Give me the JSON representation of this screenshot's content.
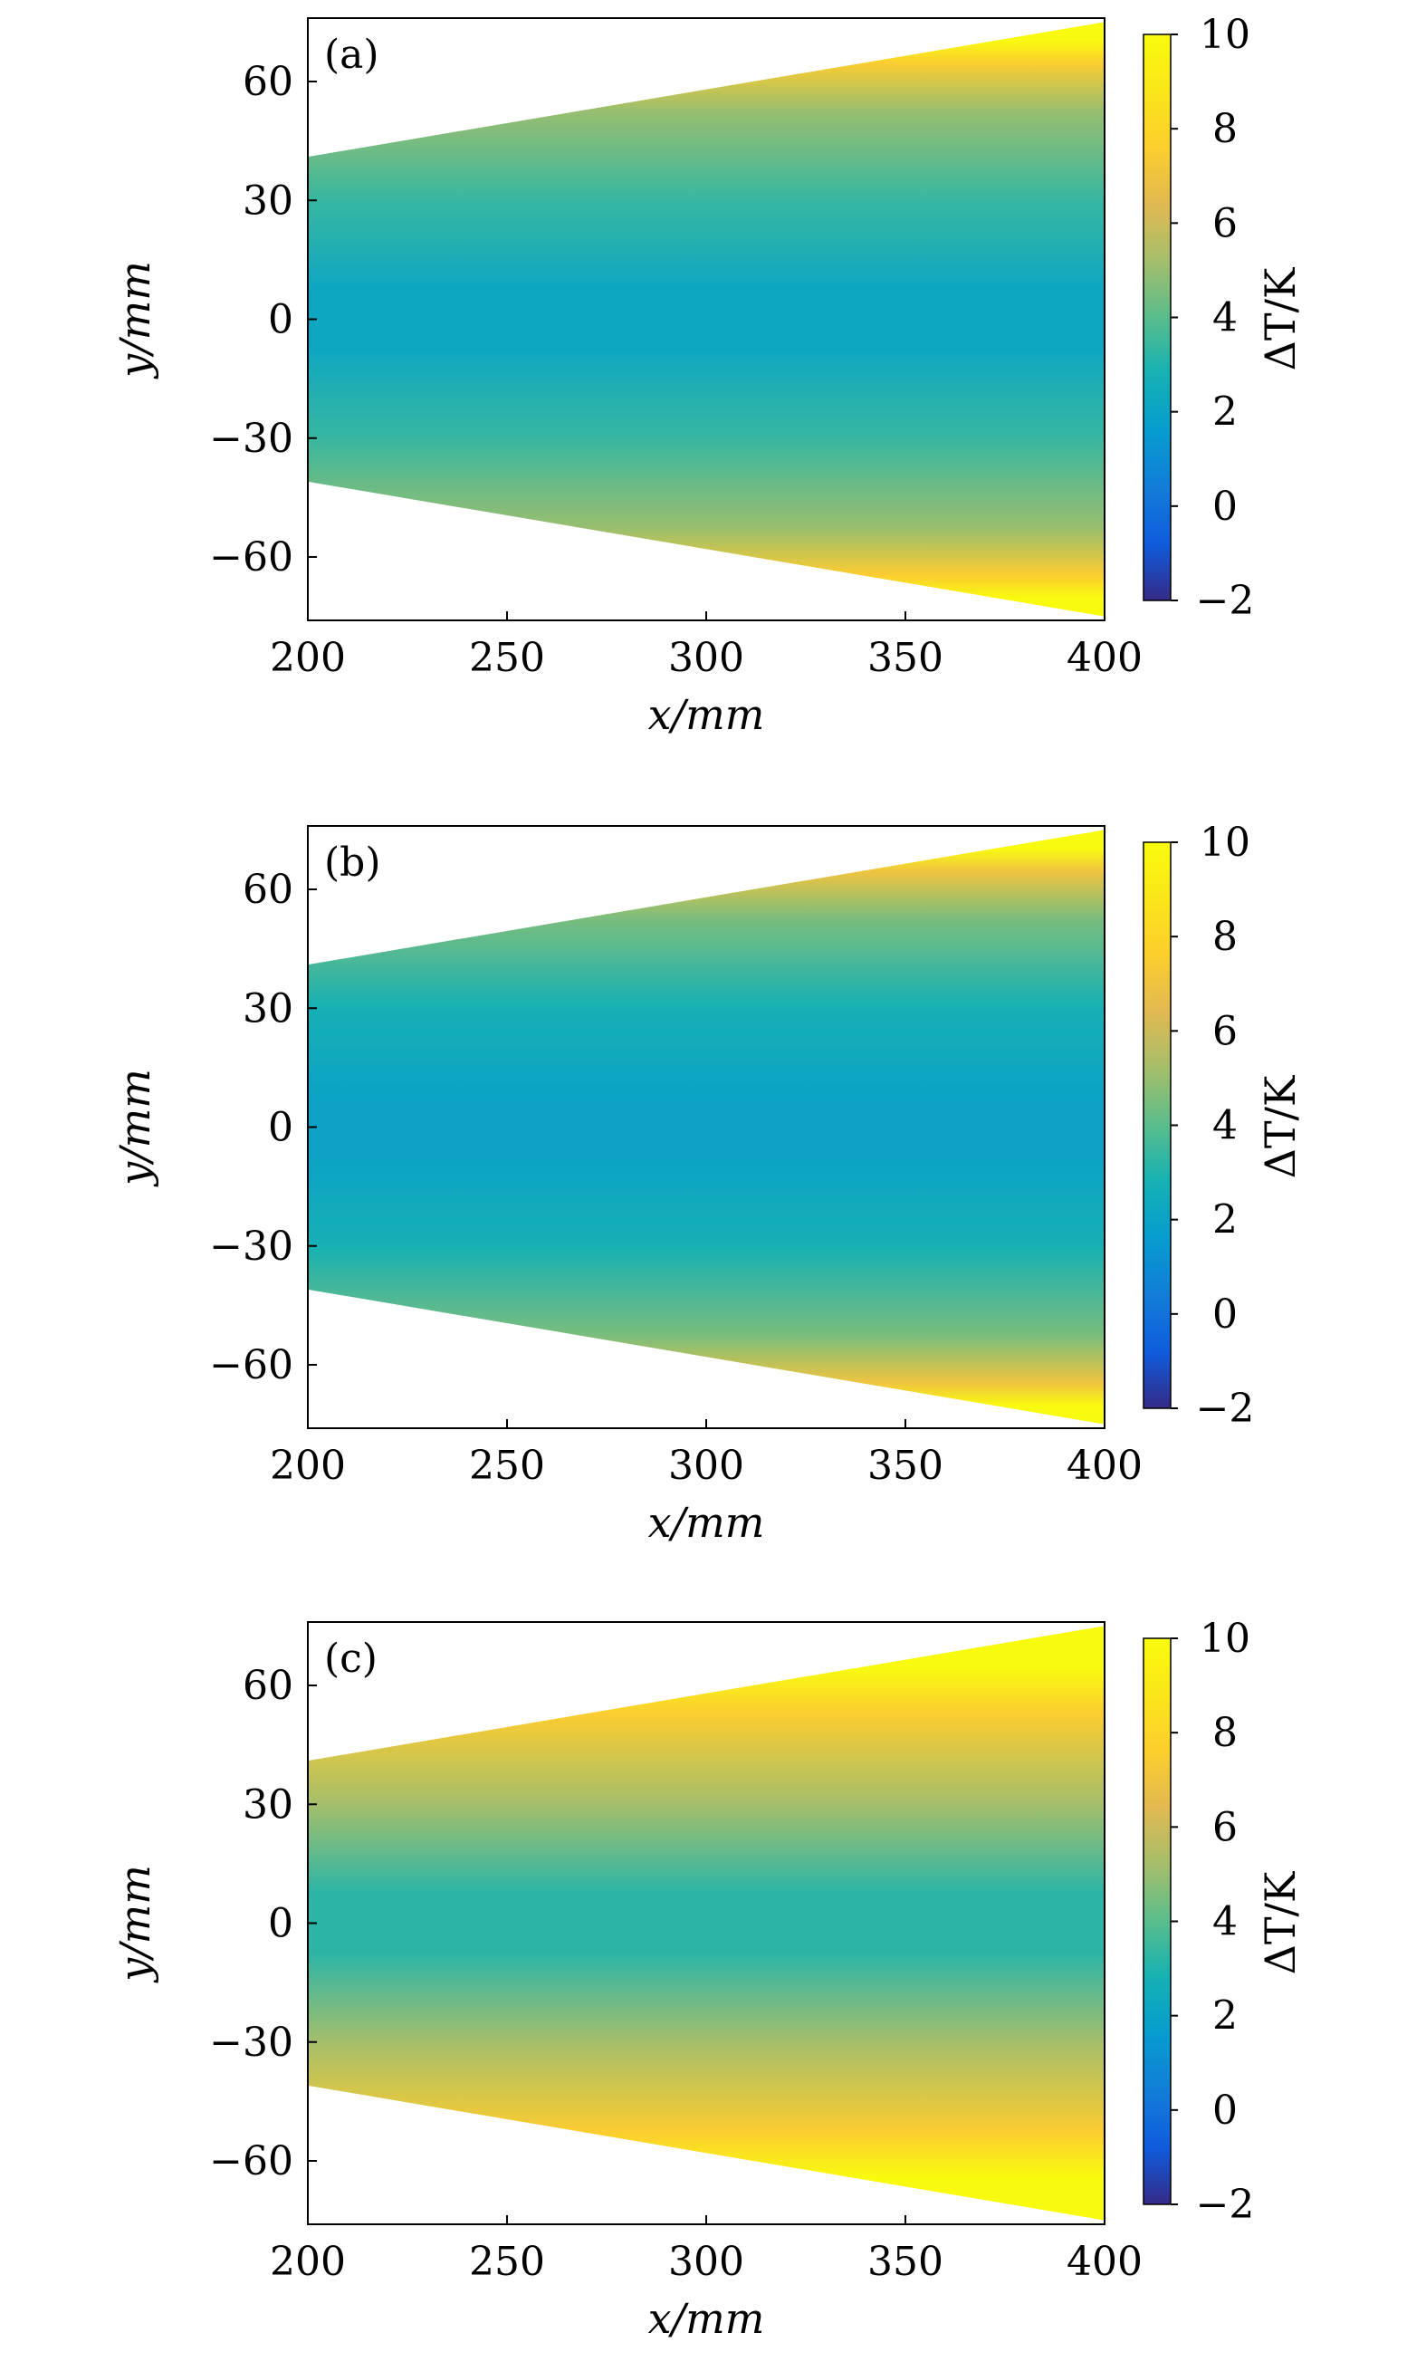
{
  "chart_data": [
    {
      "type": "heatmap",
      "panel_label": "(a)",
      "xlabel": "x/mm",
      "ylabel": "y/mm",
      "xlim": [
        200,
        400
      ],
      "ylim": [
        -76,
        76
      ],
      "xticks": [
        200,
        250,
        300,
        350,
        400
      ],
      "yticks": [
        -60,
        -30,
        0,
        30,
        60
      ],
      "domain_half_width": {
        "x": [
          200,
          400
        ],
        "half_width": [
          41,
          75
        ]
      },
      "field": {
        "center_value": 2.2,
        "edge_value": 10,
        "near_edge_value": 5.0,
        "mid_value": 3.4
      },
      "colorbar": {
        "label": "ΔT/K",
        "min": -2,
        "max": 10,
        "ticks": [
          -2,
          0,
          2,
          4,
          6,
          8,
          10
        ]
      }
    },
    {
      "type": "heatmap",
      "panel_label": "(b)",
      "xlabel": "x/mm",
      "ylabel": "y/mm",
      "xlim": [
        200,
        400
      ],
      "ylim": [
        -76,
        76
      ],
      "xticks": [
        200,
        250,
        300,
        350,
        400
      ],
      "yticks": [
        -60,
        -30,
        0,
        30,
        60
      ],
      "domain_half_width": {
        "x": [
          200,
          400
        ],
        "half_width": [
          41,
          75
        ]
      },
      "field": {
        "center_value": 2.0,
        "edge_value": 10,
        "near_edge_value": 4.5,
        "mid_value": 2.8
      },
      "colorbar": {
        "label": "ΔT/K",
        "min": -2,
        "max": 10,
        "ticks": [
          -2,
          0,
          2,
          4,
          6,
          8,
          10
        ]
      }
    },
    {
      "type": "heatmap",
      "panel_label": "(c)",
      "xlabel": "x/mm",
      "ylabel": "y/mm",
      "xlim": [
        200,
        400
      ],
      "ylim": [
        -76,
        76
      ],
      "xticks": [
        200,
        250,
        300,
        350,
        400
      ],
      "yticks": [
        -60,
        -30,
        0,
        30,
        60
      ],
      "domain_half_width": {
        "x": [
          200,
          400
        ],
        "half_width": [
          41,
          75
        ]
      },
      "field": {
        "center_value": 3.2,
        "edge_value": 10,
        "near_edge_value": 7.5,
        "mid_value": 5.2
      },
      "colorbar": {
        "label": "ΔT/K",
        "min": -2,
        "max": 10,
        "ticks": [
          -2,
          0,
          2,
          4,
          6,
          8,
          10
        ]
      }
    }
  ]
}
